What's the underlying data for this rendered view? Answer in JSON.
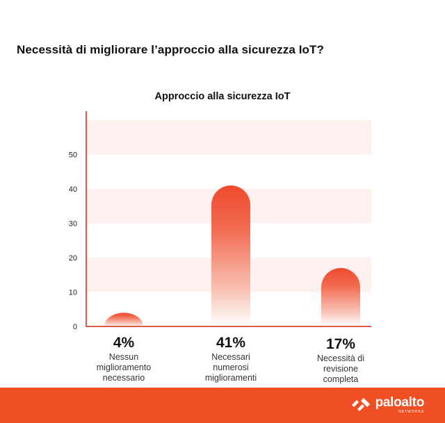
{
  "headline": "Necessità di migliorare l’approccio alla sicurezza IoT?",
  "chart_data": {
    "type": "bar",
    "title": "Approccio alla sicurezza IoT",
    "xlabel": "",
    "ylabel": "",
    "ylim": [
      0,
      60
    ],
    "yticks": [
      0,
      10,
      20,
      30,
      40,
      50
    ],
    "grid": "horizontal bands",
    "categories": [
      "Nessun miglioramento necessario",
      "Necessari numerosi miglioramenti",
      "Necessità di revisione completa"
    ],
    "values": [
      4,
      41,
      17
    ],
    "data_labels": [
      "4%",
      "41%",
      "17%"
    ],
    "label_lines": [
      [
        "Nessun",
        "miglioramento",
        "necessario"
      ],
      [
        "Necessari",
        "numerosi",
        "miglioramenti"
      ],
      [
        "Necessità di",
        "revisione",
        "completa"
      ]
    ]
  },
  "colors": {
    "accent": "#f04e23",
    "bar_top": "#ef4b2f",
    "band": "#fdf0ee",
    "axis": "#e05a45"
  },
  "footer": {
    "logo_icon": "paloalto-logo-icon",
    "brand": "paloalto",
    "brand_sub": "NETWORKS"
  }
}
